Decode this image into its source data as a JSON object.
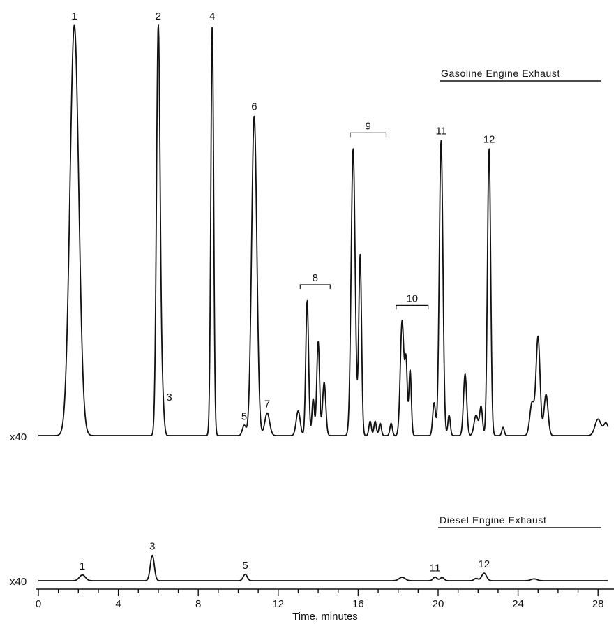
{
  "chart_data": {
    "type": "line",
    "xlabel": "Time, minutes",
    "xlim": [
      0,
      28.5
    ],
    "x_ticks": [
      0,
      4,
      8,
      12,
      16,
      20,
      24,
      28
    ],
    "panels": [
      {
        "name": "Gasoline Engine Exhaust",
        "attenuation": "x40",
        "baseline": 0,
        "ylim": [
          0,
          100
        ],
        "peaks": [
          {
            "label": "1",
            "t": 1.8,
            "height": 100,
            "width": 0.22,
            "note": "off-scale"
          },
          {
            "label": "2",
            "t": 6.0,
            "height": 100,
            "width": 0.09,
            "note": "off-scale"
          },
          {
            "label": "3",
            "t": 6.2,
            "height": 9,
            "width": 0.08
          },
          {
            "label": "4",
            "t": 8.7,
            "height": 100,
            "width": 0.07,
            "note": "off-scale"
          },
          {
            "label": "5",
            "t": 10.3,
            "height": 2.5,
            "width": 0.09
          },
          {
            "label": "6",
            "t": 10.8,
            "height": 78,
            "width": 0.13
          },
          {
            "label": "7",
            "t": 11.45,
            "height": 5.5,
            "width": 0.12
          },
          {
            "label": "",
            "t": 13.0,
            "height": 6,
            "width": 0.1
          },
          {
            "label": "8",
            "t": 13.45,
            "height": 33,
            "width": 0.07
          },
          {
            "label": "",
            "t": 13.75,
            "height": 9,
            "width": 0.06
          },
          {
            "label": "",
            "t": 14.0,
            "height": 23,
            "width": 0.07
          },
          {
            "label": "",
            "t": 14.3,
            "height": 13,
            "width": 0.08
          },
          {
            "label": "9",
            "t": 15.75,
            "height": 70,
            "width": 0.1
          },
          {
            "label": "",
            "t": 16.1,
            "height": 44,
            "width": 0.07
          },
          {
            "label": "",
            "t": 16.6,
            "height": 3.5,
            "width": 0.06
          },
          {
            "label": "",
            "t": 16.85,
            "height": 3.5,
            "width": 0.06
          },
          {
            "label": "",
            "t": 17.1,
            "height": 3,
            "width": 0.06
          },
          {
            "label": "",
            "t": 17.65,
            "height": 3,
            "width": 0.06
          },
          {
            "label": "10",
            "t": 18.2,
            "height": 28,
            "width": 0.09
          },
          {
            "label": "",
            "t": 18.4,
            "height": 17,
            "width": 0.06
          },
          {
            "label": "",
            "t": 18.6,
            "height": 16,
            "width": 0.06
          },
          {
            "label": "",
            "t": 19.8,
            "height": 8,
            "width": 0.07
          },
          {
            "label": "11",
            "t": 20.15,
            "height": 72,
            "width": 0.09
          },
          {
            "label": "",
            "t": 20.55,
            "height": 5,
            "width": 0.06
          },
          {
            "label": "",
            "t": 21.35,
            "height": 15,
            "width": 0.08
          },
          {
            "label": "",
            "t": 21.9,
            "height": 5,
            "width": 0.1
          },
          {
            "label": "",
            "t": 22.15,
            "height": 7,
            "width": 0.07
          },
          {
            "label": "12",
            "t": 22.55,
            "height": 70,
            "width": 0.08
          },
          {
            "label": "",
            "t": 23.25,
            "height": 2,
            "width": 0.06
          },
          {
            "label": "",
            "t": 24.7,
            "height": 8,
            "width": 0.11
          },
          {
            "label": "",
            "t": 25.0,
            "height": 24,
            "width": 0.1
          },
          {
            "label": "",
            "t": 25.4,
            "height": 10,
            "width": 0.1
          },
          {
            "label": "",
            "t": 28.0,
            "height": 4,
            "width": 0.15
          },
          {
            "label": "",
            "t": 28.4,
            "height": 3,
            "width": 0.12
          }
        ],
        "brackets": [
          {
            "label": "8",
            "t_start": 13.1,
            "t_end": 14.6
          },
          {
            "label": "9",
            "t_start": 15.6,
            "t_end": 17.4
          },
          {
            "label": "10",
            "t_start": 17.9,
            "t_end": 19.5
          }
        ]
      },
      {
        "name": "Diesel Engine Exhaust",
        "attenuation": "x40",
        "baseline": 0,
        "ylim": [
          0,
          40
        ],
        "peaks": [
          {
            "label": "1",
            "t": 2.2,
            "height": 2.5,
            "width": 0.15
          },
          {
            "label": "3",
            "t": 5.7,
            "height": 11,
            "width": 0.1
          },
          {
            "label": "5",
            "t": 10.35,
            "height": 2.8,
            "width": 0.1
          },
          {
            "label": "",
            "t": 18.2,
            "height": 1.5,
            "width": 0.15
          },
          {
            "label": "11",
            "t": 19.85,
            "height": 1.6,
            "width": 0.1
          },
          {
            "label": "",
            "t": 20.2,
            "height": 1.4,
            "width": 0.1
          },
          {
            "label": "",
            "t": 21.9,
            "height": 1,
            "width": 0.1
          },
          {
            "label": "12",
            "t": 22.3,
            "height": 3.3,
            "width": 0.12
          },
          {
            "label": "",
            "t": 24.8,
            "height": 0.8,
            "width": 0.15
          }
        ]
      }
    ]
  }
}
